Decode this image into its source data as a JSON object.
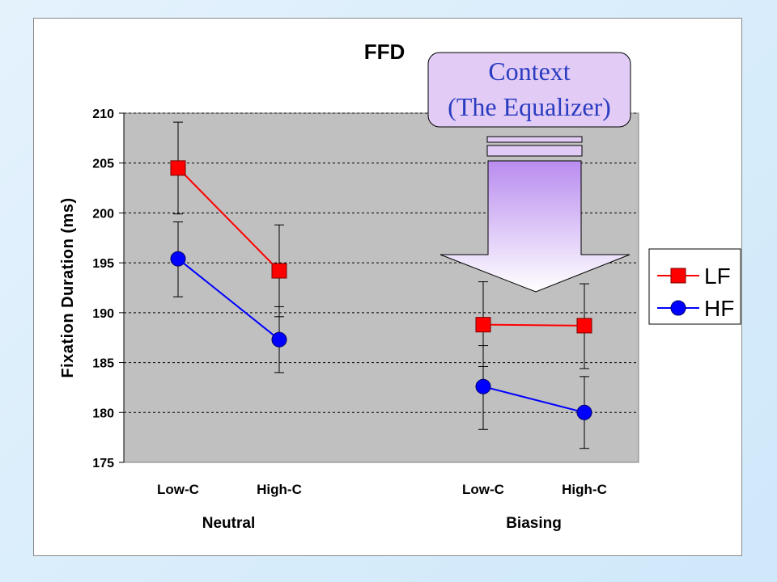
{
  "chart_data": {
    "type": "line",
    "title": "FFD",
    "ylabel": "Fixation Duration (ms)",
    "xlabel": "",
    "ylim": [
      175,
      210
    ],
    "yticks": [
      175,
      180,
      185,
      190,
      195,
      200,
      205,
      210
    ],
    "grid": true,
    "legend_position": "right",
    "groups": [
      {
        "label": "Neutral",
        "categories": [
          "Low-C",
          "High-C"
        ]
      },
      {
        "label": "Biasing",
        "categories": [
          "Low-C",
          "High-C"
        ]
      }
    ],
    "series": [
      {
        "name": "LF",
        "color": "#ff0000",
        "marker": "square",
        "groups": [
          {
            "values": [
              204.5,
              194.2
            ],
            "err_low": [
              199.9,
              189.6
            ],
            "err_high": [
              209.1,
              198.8
            ]
          },
          {
            "values": [
              188.8,
              188.7
            ],
            "err_low": [
              184.6,
              184.4
            ],
            "err_high": [
              193.1,
              192.9
            ]
          }
        ]
      },
      {
        "name": "HF",
        "color": "#0000ff",
        "marker": "circle",
        "groups": [
          {
            "values": [
              195.4,
              187.3
            ],
            "err_low": [
              191.6,
              184.0
            ],
            "err_high": [
              199.1,
              190.6
            ]
          },
          {
            "values": [
              182.6,
              180.0
            ],
            "err_low": [
              178.3,
              176.4
            ],
            "err_high": [
              186.7,
              183.6
            ]
          }
        ]
      }
    ],
    "annotation": {
      "lines": [
        "Context",
        "(The Equalizer)"
      ],
      "fill": "#e2ccf6",
      "arrow_gradient_top": "#b98cef",
      "arrow_gradient_bottom": "#ffffff"
    }
  }
}
